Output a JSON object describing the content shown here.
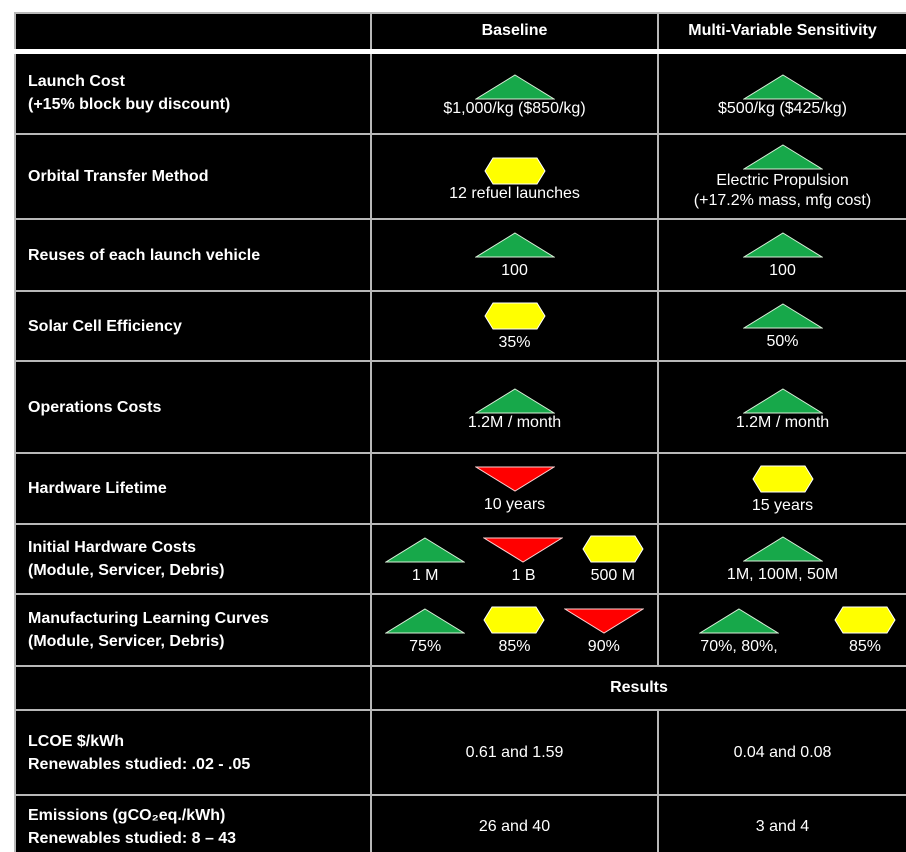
{
  "header": {
    "columns": [
      "Baseline",
      "Multi-Variable Sensitivity"
    ]
  },
  "rows": [
    {
      "label": [
        "Launch Cost",
        "(+15% block buy discount)"
      ],
      "baseline": [
        "$1,000/kg ($850/kg)"
      ],
      "sensitivity": [
        "$500/kg ($425/kg)"
      ]
    },
    {
      "label": [
        "Orbital Transfer Method"
      ],
      "baseline": [
        "12 refuel launches"
      ],
      "sensitivity": [
        "Electric Propulsion",
        "(+17.2% mass, mfg cost)"
      ]
    },
    {
      "label": [
        "Reuses of each launch vehicle"
      ],
      "baseline": [
        "100"
      ],
      "sensitivity": [
        "100"
      ]
    },
    {
      "label": [
        "Solar Cell Efficiency"
      ],
      "baseline": [
        "35%"
      ],
      "sensitivity": [
        "50%"
      ]
    },
    {
      "label": [
        "Operations Costs"
      ],
      "baseline": [
        "1.2M / month"
      ],
      "sensitivity": [
        "1.2M / month"
      ]
    },
    {
      "label": [
        "Hardware Lifetime"
      ],
      "baseline": [
        "10 years"
      ],
      "sensitivity": [
        "15 years"
      ]
    },
    {
      "label": [
        "Initial Hardware Costs",
        "(Module, Servicer, Debris)"
      ],
      "baseline": [
        "1 M",
        "1 B",
        "500 M"
      ],
      "sensitivity": [
        "1M, 100M, 50M"
      ]
    },
    {
      "label": [
        "Manufacturing Learning Curves",
        "(Module, Servicer, Debris)"
      ],
      "baseline": [
        "75%",
        "85%",
        "90%"
      ],
      "sensitivity": [
        "70%, 80%,",
        "85%"
      ]
    }
  ],
  "results": {
    "title": "Results",
    "rows": [
      {
        "label": [
          "LCOE $/kWh",
          "Renewables studied: .02 - .05"
        ],
        "baseline": [
          "0.61 and 1.59"
        ],
        "sensitivity": [
          "0.04 and 0.08"
        ]
      },
      {
        "label": [
          "Emissions (gCO₂eq./kWh)",
          "Renewables studied: 8 – 43"
        ],
        "baseline": [
          "26 and 40"
        ],
        "sensitivity": [
          "3 and 4"
        ]
      }
    ]
  }
}
